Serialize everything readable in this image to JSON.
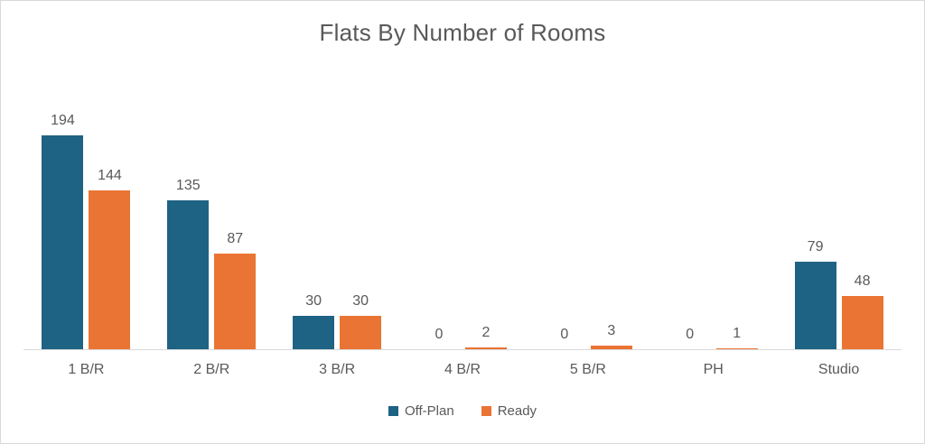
{
  "frame": {
    "background": "#ffffff",
    "border_color": "#d9d9d9"
  },
  "chart_data": {
    "type": "bar",
    "title": "Flats By Number of Rooms",
    "categories": [
      "1 B/R",
      "2 B/R",
      "3 B/R",
      "4 B/R",
      "5 B/R",
      "PH",
      "Studio"
    ],
    "series": [
      {
        "name": "Off-Plan",
        "color": "#1e6284",
        "values": [
          194,
          135,
          30,
          0,
          0,
          0,
          79
        ]
      },
      {
        "name": "Ready",
        "color": "#ea7433",
        "values": [
          144,
          87,
          30,
          2,
          3,
          1,
          48
        ]
      }
    ],
    "xlabel": "",
    "ylabel": "",
    "ylim": [
      0,
      200
    ],
    "grid": false,
    "data_labels": true,
    "legend_position": "bottom",
    "axis_line_color": "#d9d9d9",
    "text_color": "#595959"
  }
}
